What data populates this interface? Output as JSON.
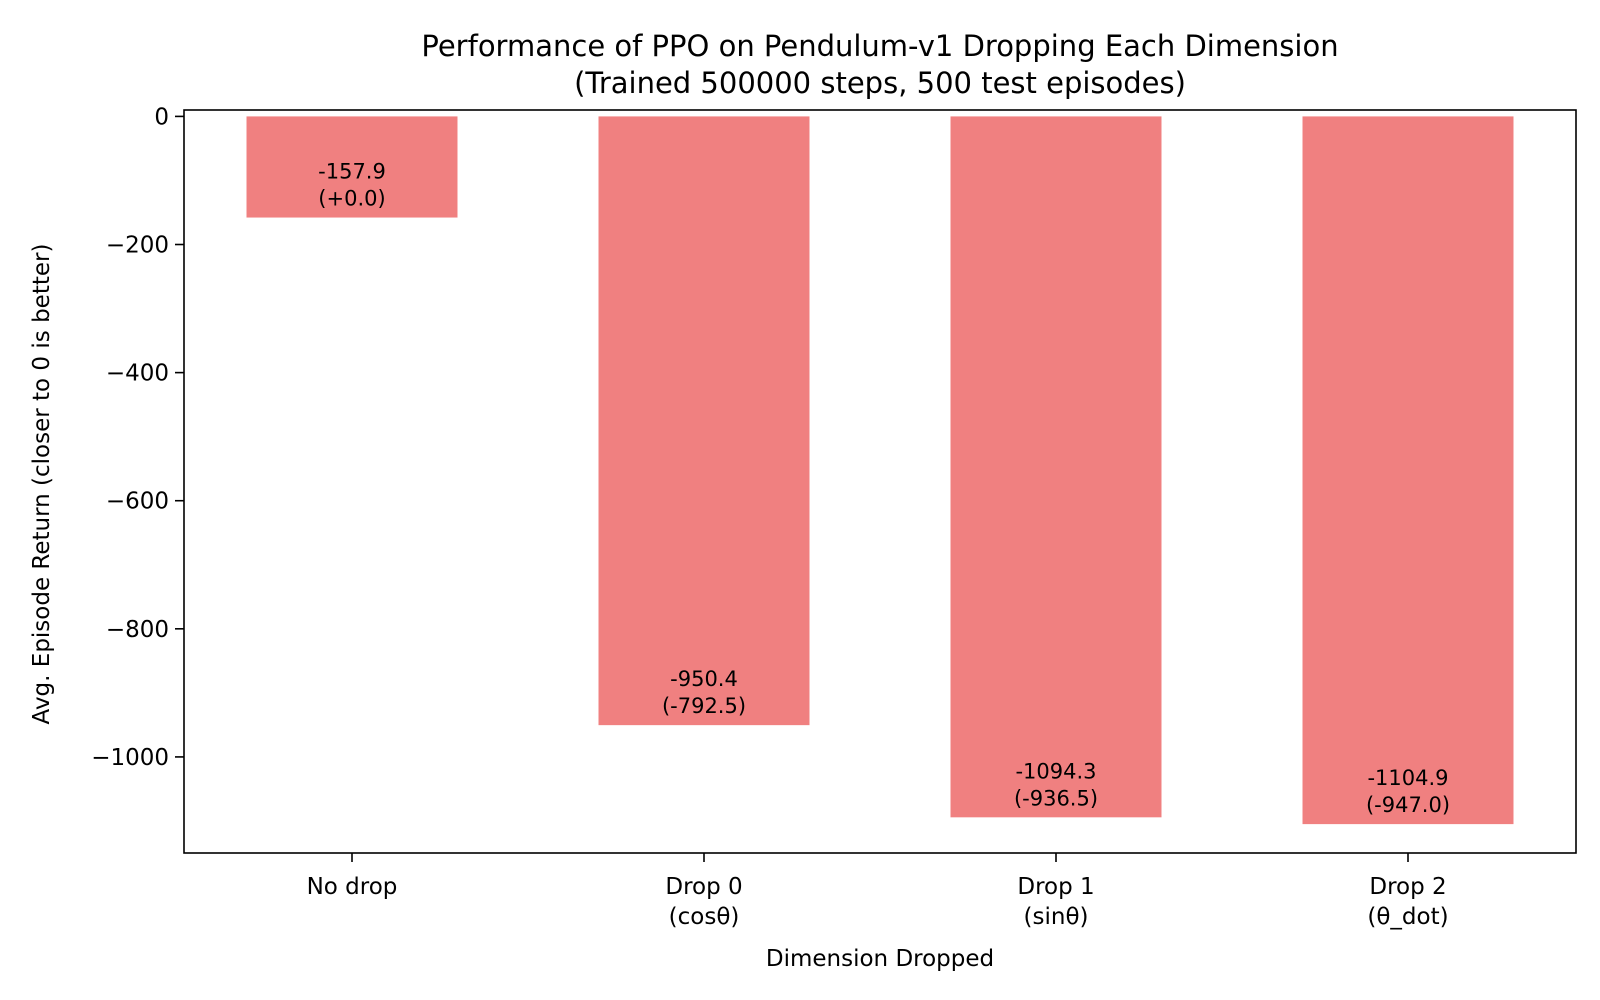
{
  "chart_data": {
    "type": "bar",
    "title": "Performance of PPO on Pendulum-v1 Dropping Each Dimension",
    "subtitle": "(Trained 500000 steps, 500 test episodes)",
    "xlabel": "Dimension Dropped",
    "ylabel": "Avg. Episode Return (closer to 0 is better)",
    "ylim": [
      -1150,
      10
    ],
    "yticks": [
      0,
      -200,
      -400,
      -600,
      -800,
      -1000
    ],
    "ytick_labels": [
      "0",
      "−200",
      "−400",
      "−600",
      "−800",
      "−1000"
    ],
    "categories": [
      [
        "No drop"
      ],
      [
        "Drop 0",
        "(cosθ)"
      ],
      [
        "Drop 1",
        "(sinθ)"
      ],
      [
        "Drop 2",
        "(θ_dot)"
      ]
    ],
    "values": [
      -157.9,
      -950.4,
      -1094.3,
      -1104.9
    ],
    "data_labels": [
      [
        "-157.9",
        "(+0.0)"
      ],
      [
        "-950.4",
        "(-792.5)"
      ],
      [
        "-1094.3",
        "(-936.5)"
      ],
      [
        "-1104.9",
        "(-947.0)"
      ]
    ],
    "bar_color": "#f08080",
    "grid": false,
    "legend": "none"
  }
}
